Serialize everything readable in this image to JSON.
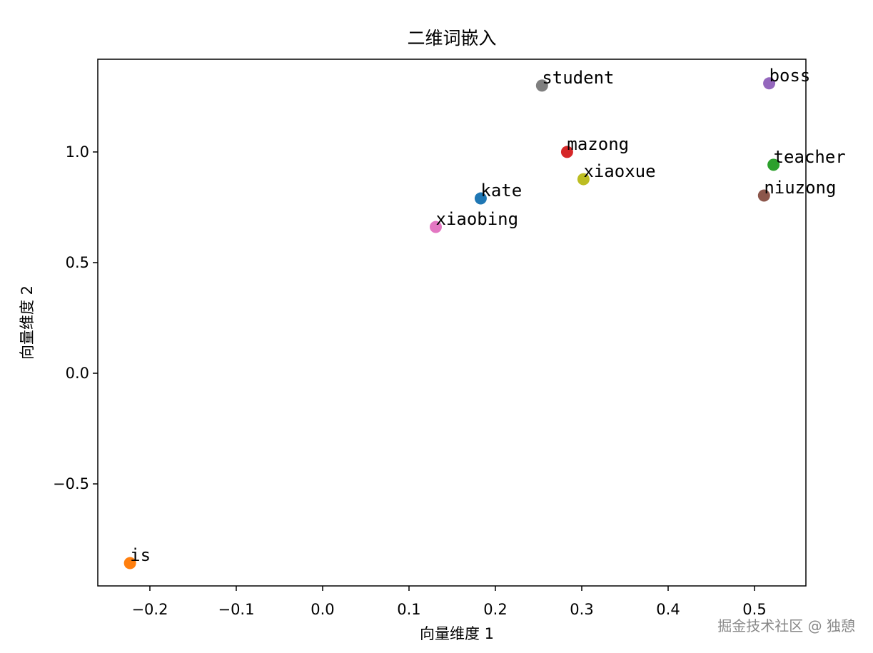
{
  "chart_data": {
    "type": "scatter",
    "title": "二维词嵌入",
    "xlabel": "向量维度 1",
    "ylabel": "向量维度 2",
    "xlim": [
      -0.2603,
      0.5595
    ],
    "ylim": [
      -0.961,
      1.419
    ],
    "xticks": [
      {
        "value": -0.2,
        "label": "−0.2"
      },
      {
        "value": -0.1,
        "label": "−0.1"
      },
      {
        "value": 0,
        "label": "0.0"
      },
      0.1,
      0.2,
      0.3,
      0.4,
      0.5
    ],
    "yticks": [
      {
        "value": -0.5,
        "label": "−0.5"
      },
      {
        "value": 0,
        "label": "0.0"
      },
      0.5,
      {
        "value": 1,
        "label": "1.0"
      }
    ],
    "series": [
      {
        "name": "kate",
        "color": "#1f77b4",
        "x": [
          0.183
        ],
        "values": [
          0.79
        ]
      },
      {
        "name": "is",
        "color": "#ff7f0e",
        "x": [
          -0.223
        ],
        "values": [
          -0.858
        ]
      },
      {
        "name": "teacher",
        "color": "#2ca02c",
        "x": [
          0.522
        ],
        "values": [
          0.942
        ]
      },
      {
        "name": "mazong",
        "color": "#d62728",
        "x": [
          0.283
        ],
        "values": [
          1.0
        ]
      },
      {
        "name": "boss",
        "color": "#9467bd",
        "x": [
          0.517
        ],
        "values": [
          1.31
        ]
      },
      {
        "name": "niuzong",
        "color": "#8c564b",
        "x": [
          0.511
        ],
        "values": [
          0.803
        ]
      },
      {
        "name": "xiaobing",
        "color": "#e377c2",
        "x": [
          0.131
        ],
        "values": [
          0.661
        ]
      },
      {
        "name": "student",
        "color": "#7f7f7f",
        "x": [
          0.254
        ],
        "values": [
          1.3
        ]
      },
      {
        "name": "xiaoxue",
        "color": "#bcbd22",
        "x": [
          0.302
        ],
        "values": [
          0.877
        ]
      }
    ],
    "watermark": "掘金技术社区 @ 独憩"
  }
}
